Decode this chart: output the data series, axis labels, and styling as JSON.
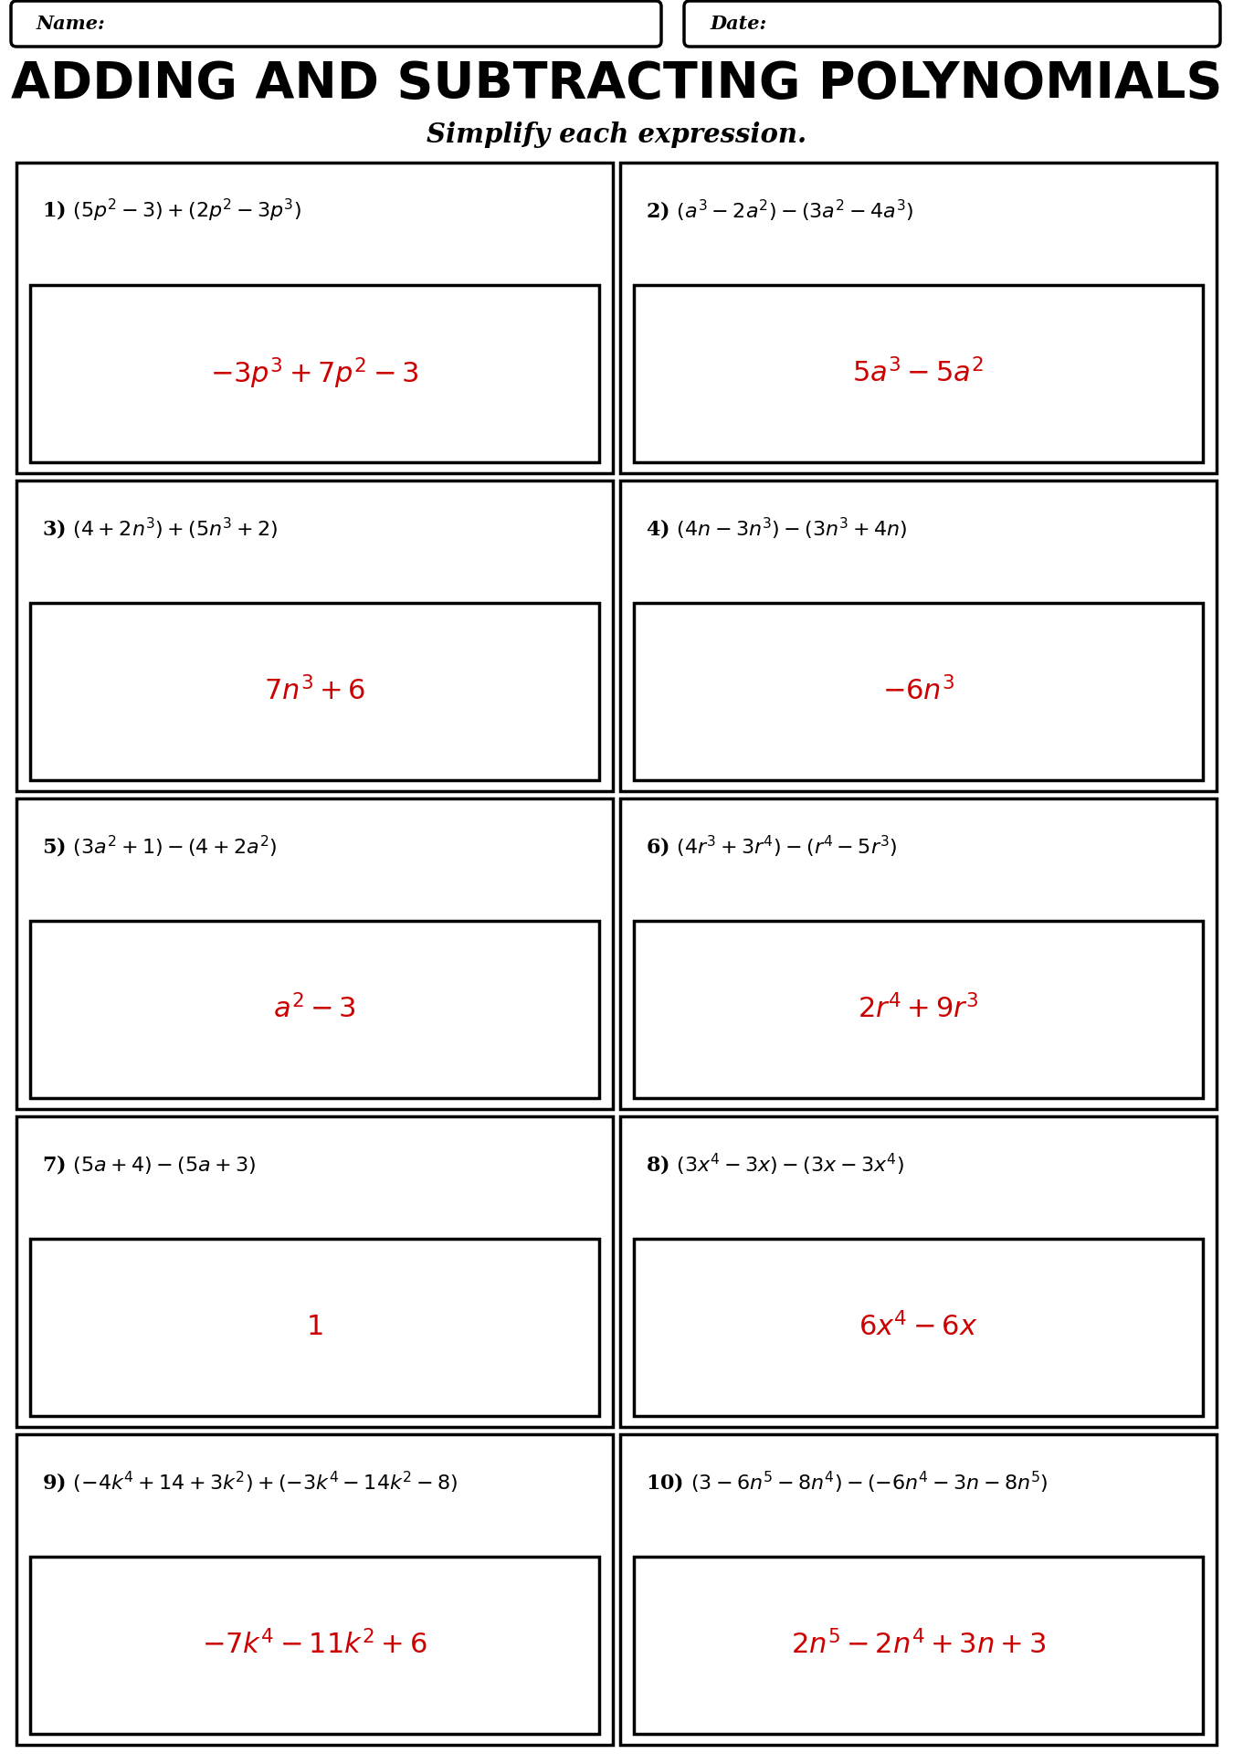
{
  "title": "ADDING AND SUBTRACTING POLYNOMIALS",
  "subtitle": "Simplify each expression.",
  "name_label": "Name:",
  "date_label": "Date:",
  "bg_color": "#ffffff",
  "text_color": "#000000",
  "answer_color": "#cc0000",
  "problems": [
    {
      "number": "1) ",
      "question": "$(5p^2-3)+(2p^2-3p^3)$",
      "answer": "$-3p^3+7p^2-3$"
    },
    {
      "number": "2) ",
      "question": "$(a^3-2a^2)-(3a^2-4a^3)$",
      "answer": "$5a^3-5a^2$"
    },
    {
      "number": "3) ",
      "question": "$(4+2n^3)+(5n^3+2)$",
      "answer": "$7n^3+6$"
    },
    {
      "number": "4) ",
      "question": "$(4n-3n^3)-(3n^3+4n)$",
      "answer": "$-6n^3$"
    },
    {
      "number": "5) ",
      "question": "$(3a^2+1)-(4+2a^2)$",
      "answer": "$a^2-3$"
    },
    {
      "number": "6) ",
      "question": "$(4r^3+3r^4)-(r^4-5r^3)$",
      "answer": "$2r^4+9r^3$"
    },
    {
      "number": "7) ",
      "question": "$(5a+4)-(5a+3)$",
      "answer": "$1$"
    },
    {
      "number": "8) ",
      "question": "$(3x^4-3x)-(3x-3x^4)$",
      "answer": "$6x^4-6x$"
    },
    {
      "number": "9) ",
      "question": "$(-4k^4+14+3k^2)+(-3k^4-14k^2-8)$",
      "answer": "$-7k^4-11k^2+6$"
    },
    {
      "number": "10) ",
      "question": "$(3-6n^5-8n^4)-(-6n^4-3n-8n^5)$",
      "answer": "$2n^5-2n^4+3n+3$"
    }
  ]
}
